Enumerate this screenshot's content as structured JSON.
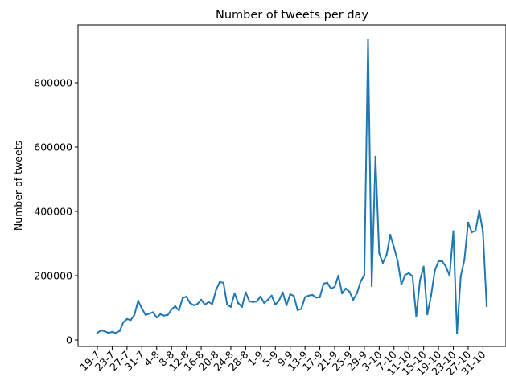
{
  "chart_data": {
    "type": "line",
    "title": "Number of tweets per day",
    "xlabel": "",
    "ylabel": "Number of tweets",
    "ylim": [
      -20000,
      980000
    ],
    "yticks": [
      0,
      200000,
      400000,
      600000,
      800000
    ],
    "ytick_labels": [
      "0",
      "200000",
      "400000",
      "600000",
      "800000"
    ],
    "xtick_labels": [
      "19-7",
      "23-7",
      "27-7",
      "31-7",
      "4-8",
      "8-8",
      "12-8",
      "16-8",
      "20-8",
      "24-8",
      "28-8",
      "1-9",
      "5-9",
      "9-9",
      "13-9",
      "17-9",
      "21-9",
      "25-9",
      "29-9",
      "3-10",
      "7-10",
      "11-10",
      "15-10",
      "19-10",
      "23-10",
      "27-10",
      "31-10"
    ],
    "grid": false,
    "line_color": "#1f77b4",
    "series": [
      {
        "values": [
          22000,
          30000,
          27000,
          22000,
          25000,
          22000,
          28000,
          55000,
          65000,
          62000,
          78000,
          122000,
          98000,
          78000,
          82000,
          86000,
          70000,
          80000,
          76000,
          78000,
          95000,
          105000,
          92000,
          130000,
          135000,
          115000,
          108000,
          112000,
          125000,
          110000,
          118000,
          112000,
          155000,
          180000,
          178000,
          110000,
          103000,
          145000,
          115000,
          103000,
          148000,
          120000,
          118000,
          120000,
          135000,
          115000,
          125000,
          138000,
          110000,
          123000,
          148000,
          108000,
          142000,
          137000,
          93000,
          97000,
          133000,
          138000,
          140000,
          132000,
          133000,
          175000,
          178000,
          160000,
          165000,
          200000,
          145000,
          160000,
          150000,
          125000,
          145000,
          182000,
          202000,
          935000,
          168000,
          570000,
          270000,
          240000,
          265000,
          327000,
          288000,
          245000,
          173000,
          202000,
          208000,
          198000,
          73000,
          185000,
          228000,
          80000,
          138000,
          215000,
          245000,
          245000,
          228000,
          200000,
          338000,
          22000,
          198000,
          250000,
          365000,
          335000,
          340000,
          403000,
          335000,
          105000
        ]
      }
    ]
  }
}
